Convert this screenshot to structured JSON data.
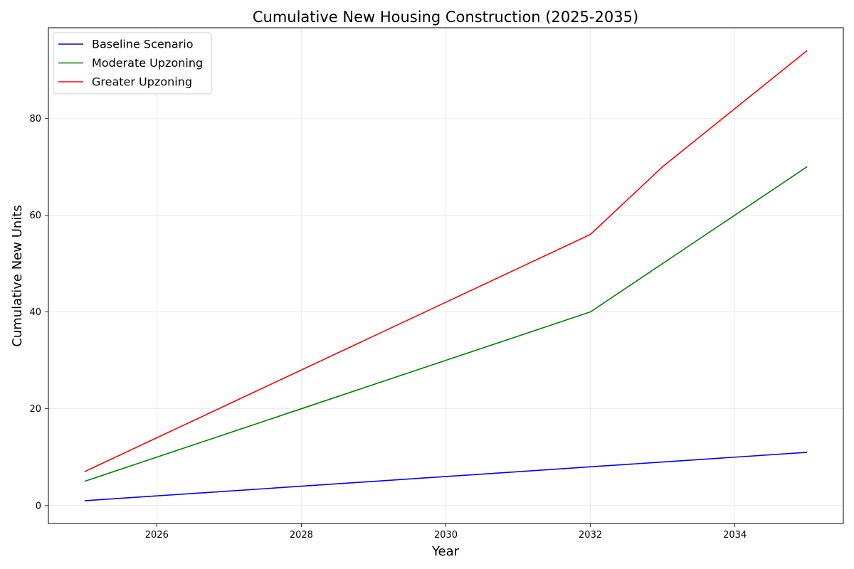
{
  "chart_data": {
    "type": "line",
    "title": "Cumulative New Housing Construction (2025-2035)",
    "xlabel": "Year",
    "ylabel": "Cumulative New Units",
    "x": [
      2025,
      2026,
      2027,
      2028,
      2029,
      2030,
      2031,
      2032,
      2033,
      2034,
      2035
    ],
    "xlim": [
      2024.5,
      2035.5
    ],
    "ylim": [
      -3.7,
      98.7
    ],
    "xticks": [
      2026,
      2028,
      2030,
      2032,
      2034
    ],
    "yticks": [
      0,
      20,
      40,
      60,
      80
    ],
    "grid": true,
    "legend_position": "top-left",
    "series": [
      {
        "name": "Baseline Scenario",
        "color": "#0000ff",
        "values": [
          1,
          2,
          3,
          4,
          5,
          6,
          7,
          8,
          9,
          10,
          11
        ]
      },
      {
        "name": "Moderate Upzoning",
        "color": "#008000",
        "values": [
          5,
          10,
          15,
          20,
          25,
          30,
          35,
          40,
          50,
          60,
          70
        ]
      },
      {
        "name": "Greater Upzoning",
        "color": "#ff0000",
        "values": [
          7,
          14,
          21,
          28,
          35,
          42,
          49,
          56,
          70,
          82,
          94
        ]
      }
    ]
  }
}
